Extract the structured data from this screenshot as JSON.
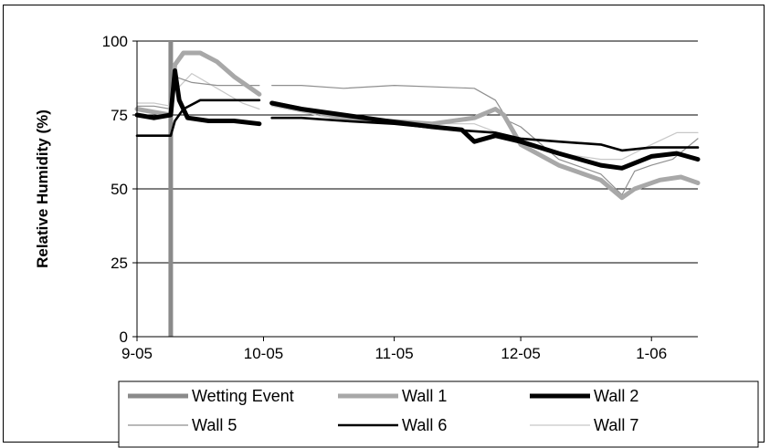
{
  "chart_data": {
    "type": "line",
    "title": "",
    "xlabel": "",
    "ylabel": "Relative Humidity (%)",
    "ylim": [
      0,
      100
    ],
    "yticks": [
      0,
      25,
      50,
      75,
      100
    ],
    "xlim": [
      "2005-09-01",
      "2006-01-12"
    ],
    "xticks": [
      {
        "date": "2005-09-01",
        "label": "9-05"
      },
      {
        "date": "2005-10-01",
        "label": "10-05"
      },
      {
        "date": "2005-11-01",
        "label": "11-05"
      },
      {
        "date": "2005-12-01",
        "label": "12-05"
      },
      {
        "date": "2006-01-01",
        "label": "1-06"
      }
    ],
    "grid": "horizontal",
    "legend_position": "bottom",
    "events": [
      {
        "name": "Wetting Event",
        "date": "2005-09-09",
        "color": "#8a8a8a"
      }
    ],
    "series": [
      {
        "name": "Wall 1",
        "color": "#a8a8a8",
        "width": "thick",
        "segments": [
          [
            [
              "2005-09-01",
              77
            ],
            [
              "2005-09-05",
              76
            ],
            [
              "2005-09-09",
              75
            ],
            [
              "2005-09-10",
              92
            ],
            [
              "2005-09-12",
              96
            ],
            [
              "2005-09-16",
              96
            ],
            [
              "2005-09-20",
              93
            ],
            [
              "2005-09-24",
              88
            ],
            [
              "2005-09-28",
              84
            ],
            [
              "2005-09-30",
              82
            ]
          ],
          [
            [
              "2005-10-03",
              79
            ],
            [
              "2005-10-10",
              77
            ],
            [
              "2005-10-20",
              74
            ],
            [
              "2005-10-30",
              73
            ],
            [
              "2005-11-10",
              72
            ],
            [
              "2005-11-20",
              74
            ],
            [
              "2005-11-25",
              77
            ],
            [
              "2005-11-27",
              75
            ],
            [
              "2005-12-01",
              65
            ],
            [
              "2005-12-10",
              58
            ],
            [
              "2005-12-20",
              53
            ],
            [
              "2005-12-25",
              47
            ],
            [
              "2005-12-28",
              50
            ],
            [
              "2006-01-03",
              53
            ],
            [
              "2006-01-08",
              54
            ],
            [
              "2006-01-12",
              52
            ]
          ]
        ]
      },
      {
        "name": "Wall 2",
        "color": "#000000",
        "width": "thick",
        "segments": [
          [
            [
              "2005-09-01",
              75
            ],
            [
              "2005-09-05",
              74
            ],
            [
              "2005-09-09",
              75
            ],
            [
              "2005-09-10",
              90
            ],
            [
              "2005-09-11",
              80
            ],
            [
              "2005-09-13",
              74
            ],
            [
              "2005-09-18",
              73
            ],
            [
              "2005-09-24",
              73
            ],
            [
              "2005-09-30",
              72
            ]
          ],
          [
            [
              "2005-10-03",
              79
            ],
            [
              "2005-10-10",
              77
            ],
            [
              "2005-10-20",
              75
            ],
            [
              "2005-10-30",
              73
            ],
            [
              "2005-11-10",
              71
            ],
            [
              "2005-11-17",
              70
            ],
            [
              "2005-11-20",
              66
            ],
            [
              "2005-11-25",
              68
            ],
            [
              "2005-12-01",
              66
            ],
            [
              "2005-12-10",
              62
            ],
            [
              "2005-12-20",
              58
            ],
            [
              "2005-12-25",
              57
            ],
            [
              "2006-01-01",
              61
            ],
            [
              "2006-01-07",
              62
            ],
            [
              "2006-01-12",
              60
            ]
          ]
        ]
      },
      {
        "name": "Wall 5",
        "color": "#8f8f8f",
        "width": "thin",
        "segments": [
          [
            [
              "2005-09-01",
              78
            ],
            [
              "2005-09-05",
              78
            ],
            [
              "2005-09-09",
              77
            ],
            [
              "2005-09-10",
              88
            ],
            [
              "2005-09-14",
              86
            ],
            [
              "2005-09-20",
              85
            ],
            [
              "2005-09-26",
              85
            ],
            [
              "2005-09-30",
              85
            ]
          ],
          [
            [
              "2005-10-03",
              85
            ],
            [
              "2005-10-10",
              85
            ],
            [
              "2005-10-20",
              84
            ],
            [
              "2005-11-01",
              85
            ],
            [
              "2005-11-20",
              84
            ],
            [
              "2005-11-25",
              80
            ],
            [
              "2005-11-28",
              73
            ],
            [
              "2005-12-01",
              71
            ],
            [
              "2005-12-10",
              60
            ],
            [
              "2005-12-20",
              55
            ],
            [
              "2005-12-25",
              48
            ],
            [
              "2005-12-28",
              56
            ],
            [
              "2006-01-01",
              58
            ],
            [
              "2006-01-06",
              60
            ],
            [
              "2006-01-12",
              67
            ]
          ]
        ]
      },
      {
        "name": "Wall 6",
        "color": "#000000",
        "width": "medium",
        "segments": [
          [
            [
              "2005-09-01",
              68
            ],
            [
              "2005-09-05",
              68
            ],
            [
              "2005-09-09",
              68
            ],
            [
              "2005-09-10",
              73
            ],
            [
              "2005-09-12",
              77
            ],
            [
              "2005-09-16",
              80
            ],
            [
              "2005-09-24",
              80
            ],
            [
              "2005-09-30",
              80
            ]
          ],
          [
            [
              "2005-10-03",
              74
            ],
            [
              "2005-10-10",
              74
            ],
            [
              "2005-10-20",
              73
            ],
            [
              "2005-11-01",
              72
            ],
            [
              "2005-11-15",
              70
            ],
            [
              "2005-11-25",
              69
            ],
            [
              "2005-12-01",
              67
            ],
            [
              "2005-12-10",
              66
            ],
            [
              "2005-12-20",
              65
            ],
            [
              "2005-12-25",
              63
            ],
            [
              "2006-01-01",
              64
            ],
            [
              "2006-01-07",
              64
            ],
            [
              "2006-01-12",
              64
            ]
          ]
        ]
      },
      {
        "name": "Wall 7",
        "color": "#c8c8c8",
        "width": "thin",
        "segments": [
          [
            [
              "2005-09-01",
              79
            ],
            [
              "2005-09-05",
              79
            ],
            [
              "2005-09-09",
              78
            ],
            [
              "2005-09-10",
              83
            ],
            [
              "2005-09-14",
              89
            ],
            [
              "2005-09-20",
              84
            ],
            [
              "2005-09-26",
              79
            ],
            [
              "2005-09-30",
              77
            ]
          ],
          [
            [
              "2005-10-03",
              78
            ],
            [
              "2005-10-10",
              76
            ],
            [
              "2005-10-20",
              73
            ],
            [
              "2005-10-30",
              72
            ],
            [
              "2005-11-10",
              72
            ],
            [
              "2005-11-20",
              72
            ],
            [
              "2005-12-01",
              66
            ],
            [
              "2005-12-10",
              62
            ],
            [
              "2005-12-20",
              60
            ],
            [
              "2005-12-25",
              60
            ],
            [
              "2006-01-01",
              65
            ],
            [
              "2006-01-07",
              69
            ],
            [
              "2006-01-12",
              69
            ]
          ]
        ]
      }
    ]
  }
}
